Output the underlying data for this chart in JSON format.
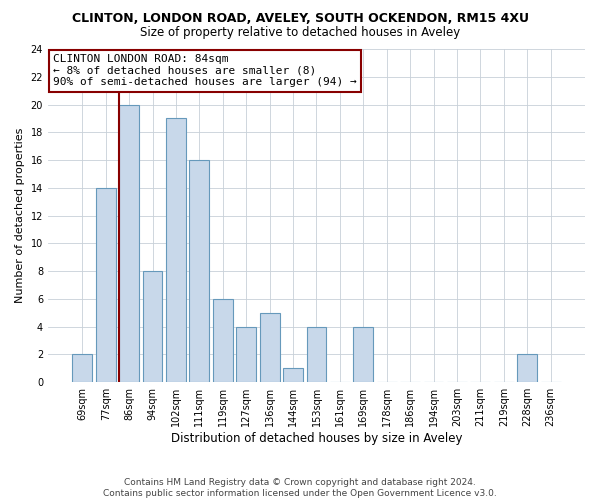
{
  "title": "CLINTON, LONDON ROAD, AVELEY, SOUTH OCKENDON, RM15 4XU",
  "subtitle": "Size of property relative to detached houses in Aveley",
  "xlabel": "Distribution of detached houses by size in Aveley",
  "ylabel": "Number of detached properties",
  "bar_color": "#c8d8ea",
  "bar_edge_color": "#6699bb",
  "bin_labels": [
    "69sqm",
    "77sqm",
    "86sqm",
    "94sqm",
    "102sqm",
    "111sqm",
    "119sqm",
    "127sqm",
    "136sqm",
    "144sqm",
    "153sqm",
    "161sqm",
    "169sqm",
    "178sqm",
    "186sqm",
    "194sqm",
    "203sqm",
    "211sqm",
    "219sqm",
    "228sqm",
    "236sqm"
  ],
  "bar_values": [
    2,
    14,
    20,
    8,
    19,
    16,
    6,
    4,
    5,
    1,
    4,
    0,
    4,
    0,
    0,
    0,
    0,
    0,
    0,
    2,
    0
  ],
  "ylim": [
    0,
    24
  ],
  "yticks": [
    0,
    2,
    4,
    6,
    8,
    10,
    12,
    14,
    16,
    18,
    20,
    22,
    24
  ],
  "reference_line_bin_index": 2,
  "reference_line_color": "#880000",
  "annotation_line1": "CLINTON LONDON ROAD: 84sqm",
  "annotation_line2": "← 8% of detached houses are smaller (8)",
  "annotation_line3": "90% of semi-detached houses are larger (94) →",
  "footer_line1": "Contains HM Land Registry data © Crown copyright and database right 2024.",
  "footer_line2": "Contains public sector information licensed under the Open Government Licence v3.0.",
  "background_color": "#ffffff",
  "grid_color": "#c8d0d8",
  "title_fontsize": 9,
  "subtitle_fontsize": 8.5,
  "xlabel_fontsize": 8.5,
  "ylabel_fontsize": 8,
  "tick_fontsize": 7,
  "annotation_fontsize": 8,
  "footer_fontsize": 6.5
}
